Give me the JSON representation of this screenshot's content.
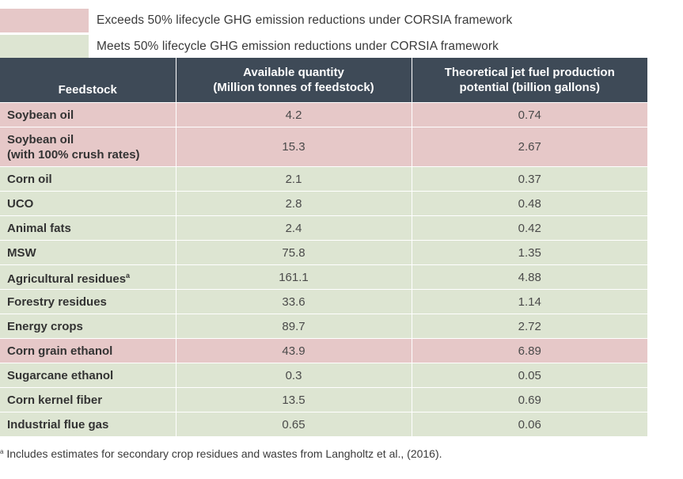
{
  "colors": {
    "exceeds": "#e6c8c8",
    "meets": "#dde5d2",
    "header_bg": "#3e4a57"
  },
  "legend": [
    {
      "key": "exceeds",
      "label": "Exceeds 50% lifecycle GHG emission reductions under CORSIA framework"
    },
    {
      "key": "meets",
      "label": "Meets 50% lifecycle GHG emission reductions under CORSIA framework"
    }
  ],
  "table": {
    "headers": {
      "feedstock": "Feedstock",
      "quantity_line1": "Available quantity",
      "quantity_line2": "(Million tonnes of feedstock)",
      "potential_line1": "Theoretical jet fuel production",
      "potential_line2": "potential (billion gallons)"
    },
    "rows": [
      {
        "feedstock": "Soybean oil",
        "feedstock_line2": "",
        "sup": "",
        "quantity": "4.2",
        "potential": "0.74",
        "category": "exceeds"
      },
      {
        "feedstock": "Soybean oil",
        "feedstock_line2": "(with 100% crush rates)",
        "sup": "",
        "quantity": "15.3",
        "potential": "2.67",
        "category": "exceeds"
      },
      {
        "feedstock": "Corn oil",
        "feedstock_line2": "",
        "sup": "",
        "quantity": "2.1",
        "potential": "0.37",
        "category": "meets"
      },
      {
        "feedstock": "UCO",
        "feedstock_line2": "",
        "sup": "",
        "quantity": "2.8",
        "potential": "0.48",
        "category": "meets"
      },
      {
        "feedstock": "Animal fats",
        "feedstock_line2": "",
        "sup": "",
        "quantity": "2.4",
        "potential": "0.42",
        "category": "meets"
      },
      {
        "feedstock": "MSW",
        "feedstock_line2": "",
        "sup": "",
        "quantity": "75.8",
        "potential": "1.35",
        "category": "meets"
      },
      {
        "feedstock": "Agricultural residues",
        "feedstock_line2": "",
        "sup": "a",
        "quantity": "161.1",
        "potential": "4.88",
        "category": "meets"
      },
      {
        "feedstock": "Forestry residues",
        "feedstock_line2": "",
        "sup": "",
        "quantity": "33.6",
        "potential": "1.14",
        "category": "meets"
      },
      {
        "feedstock": "Energy crops",
        "feedstock_line2": "",
        "sup": "",
        "quantity": "89.7",
        "potential": "2.72",
        "category": "meets"
      },
      {
        "feedstock": "Corn grain ethanol",
        "feedstock_line2": "",
        "sup": "",
        "quantity": "43.9",
        "potential": "6.89",
        "category": "exceeds"
      },
      {
        "feedstock": "Sugarcane ethanol",
        "feedstock_line2": "",
        "sup": "",
        "quantity": "0.3",
        "potential": "0.05",
        "category": "meets"
      },
      {
        "feedstock": "Corn kernel fiber",
        "feedstock_line2": "",
        "sup": "",
        "quantity": "13.5",
        "potential": "0.69",
        "category": "meets"
      },
      {
        "feedstock": "Industrial flue gas",
        "feedstock_line2": "",
        "sup": "",
        "quantity": "0.65",
        "potential": "0.06",
        "category": "meets"
      }
    ]
  },
  "footnote": {
    "marker": "a",
    "text": " Includes estimates for secondary crop residues and wastes from Langholtz et al., (2016)."
  }
}
